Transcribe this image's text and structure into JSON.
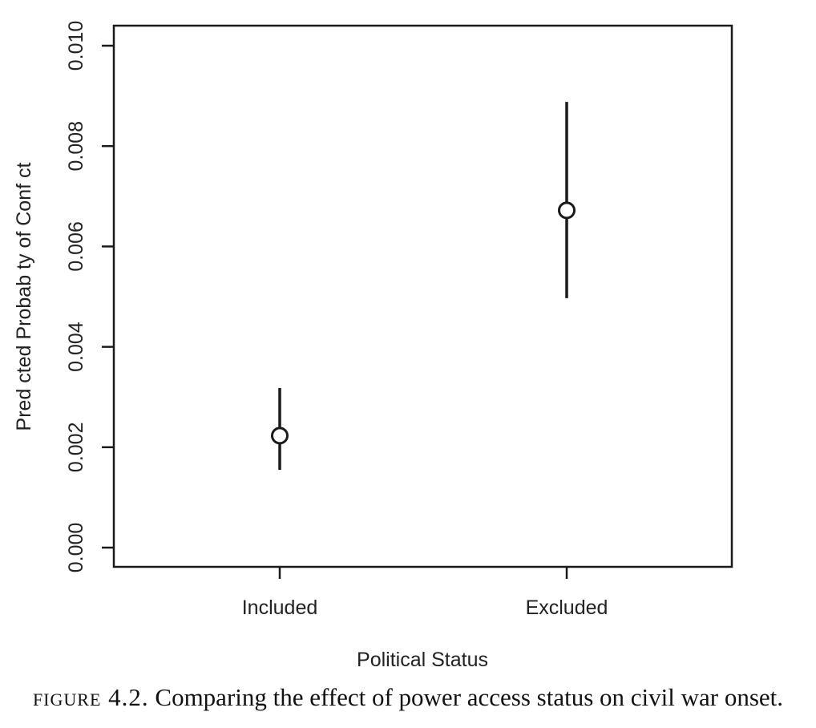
{
  "caption": {
    "label": "figure 4.2.",
    "text": "Comparing the effect of power access status on civil war onset."
  },
  "chart_data": {
    "type": "scatter",
    "title": "",
    "xlabel": "Political Status",
    "ylabel": "Pred cted Probab  ty of Conf ct",
    "categories": [
      "Included",
      "Excluded"
    ],
    "y_ticks": [
      "0.000",
      "0.002",
      "0.004",
      "0.006",
      "0.008",
      "0.010"
    ],
    "ylim": [
      0.0,
      0.01
    ],
    "grid": false,
    "points": [
      {
        "category": "Included",
        "estimate": 0.00223,
        "lower": 0.00155,
        "upper": 0.00318
      },
      {
        "category": "Excluded",
        "estimate": 0.00672,
        "lower": 0.00497,
        "upper": 0.00888
      }
    ],
    "colors": {
      "mark": "#1a1a1a",
      "axis": "#1a1a1a"
    }
  }
}
